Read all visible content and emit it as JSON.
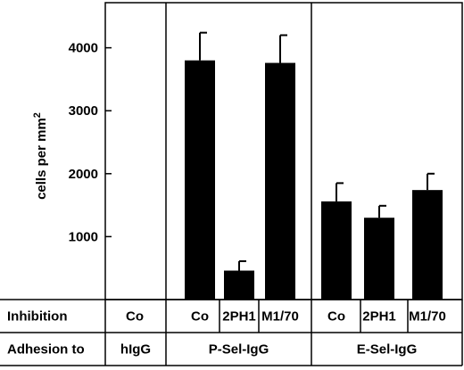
{
  "chart_data": {
    "type": "bar",
    "ylabel": "cells per mm",
    "ylabel_sup": "2",
    "ylim": [
      0,
      4700
    ],
    "yticks": [
      "1000",
      "2000",
      "3000",
      "4000"
    ],
    "ytick_values": [
      1000,
      2000,
      3000,
      4000
    ],
    "bar_color": "#000000",
    "row_headers": {
      "inhibition": "Inhibition",
      "adhesion": "Adhesion to"
    },
    "groups": [
      {
        "label": "hIgG",
        "categories": [
          "Co"
        ],
        "values": [
          0
        ],
        "errors": [
          0
        ]
      },
      {
        "label": "P-Sel-IgG",
        "categories": [
          "Co",
          "2PH1",
          "M1/70"
        ],
        "values": [
          3800,
          460,
          3760
        ],
        "errors": [
          440,
          150,
          440
        ]
      },
      {
        "label": "E-Sel-IgG",
        "categories": [
          "Co",
          "2PH1",
          "M1/70"
        ],
        "values": [
          1560,
          1300,
          1740
        ],
        "errors": [
          290,
          190,
          260
        ]
      }
    ]
  }
}
